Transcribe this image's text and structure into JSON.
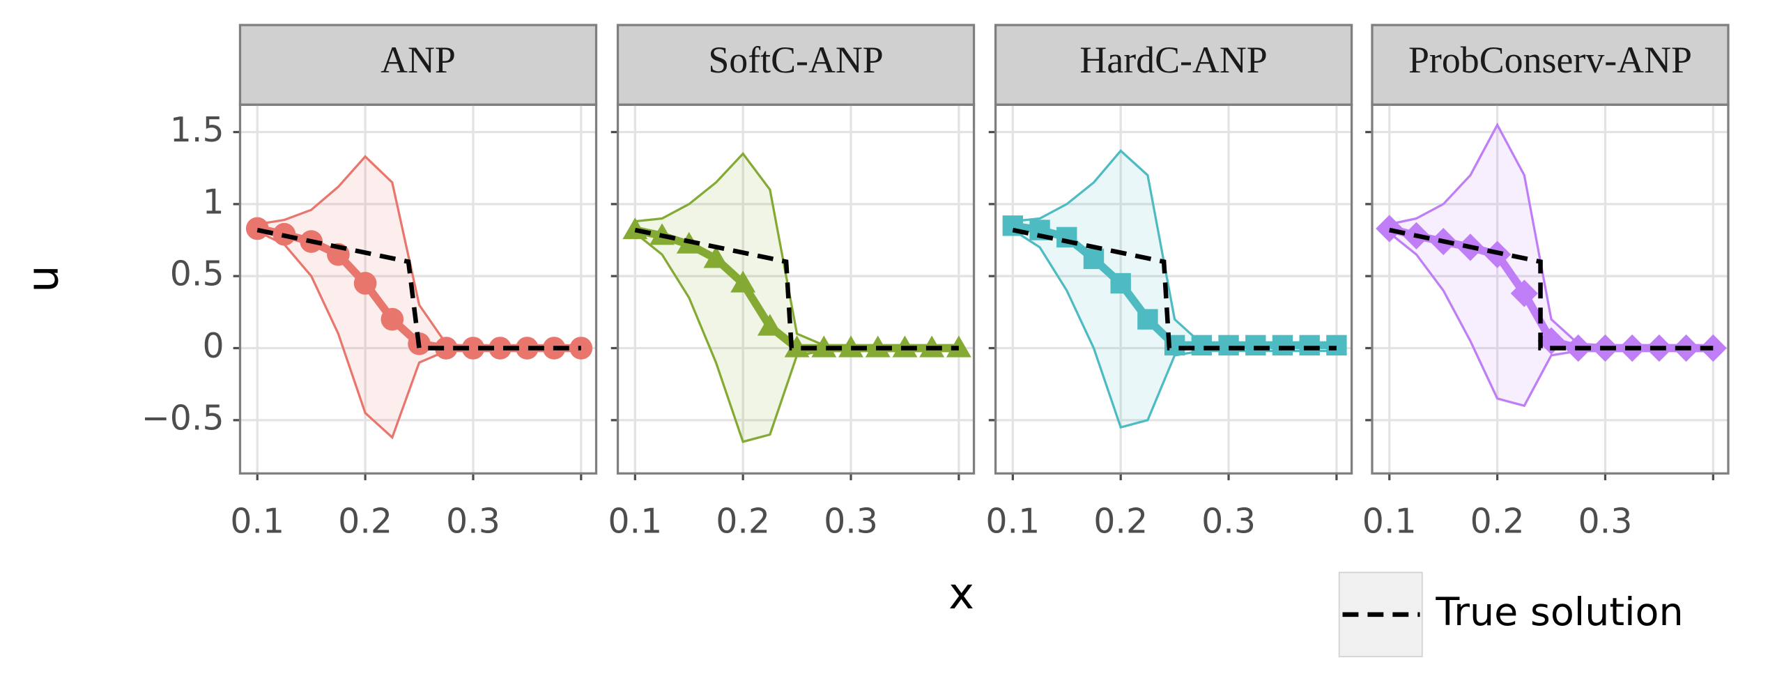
{
  "chart_data": [
    {
      "type": "line",
      "title": "ANP",
      "xlim": [
        0.084,
        0.414
      ],
      "ylim": [
        -0.87,
        1.69
      ],
      "xticks": [
        0.1,
        0.2,
        0.3,
        {
          "value": 0.4,
          "label": null
        }
      ],
      "yticks": [
        {
          "value": -0.5,
          "label": "−0.5"
        },
        0,
        0.5,
        1,
        1.5
      ],
      "x_label": "x",
      "y_label": "u",
      "grid": true,
      "series": [
        {
          "color": "#e8766d",
          "marker": "circle",
          "x": [
            0.1,
            0.125,
            0.15,
            0.175,
            0.2,
            0.225,
            0.25,
            0.275,
            0.3,
            0.325,
            0.35,
            0.375,
            0.4
          ],
          "values": [
            0.83,
            0.79,
            0.74,
            0.65,
            0.45,
            0.2,
            0.03,
            0,
            0,
            0,
            0,
            0,
            0
          ],
          "upper": [
            0.86,
            0.89,
            0.96,
            1.12,
            1.33,
            1.15,
            0.3,
            0.03,
            0.01,
            0.01,
            0.01,
            0.01,
            0.01
          ],
          "lower": [
            0.81,
            0.72,
            0.5,
            0.1,
            -0.45,
            -0.62,
            -0.1,
            -0.02,
            -0.01,
            -0.01,
            -0.01,
            -0.01,
            -0.01
          ]
        },
        {
          "name": "True solution",
          "color": "#000000",
          "x": [
            0.1,
            0.24,
            0.25,
            0.4
          ],
          "values": [
            0.82,
            0.6,
            0,
            0
          ]
        }
      ]
    },
    {
      "type": "line",
      "title": "SoftC-ANP",
      "xlim": [
        0.084,
        0.414
      ],
      "ylim": [
        -0.87,
        1.69
      ],
      "xticks": [
        0.1,
        0.2,
        0.3,
        {
          "value": 0.4,
          "label": null
        }
      ],
      "yticks": [
        {
          "value": -0.5,
          "label": "−0.5"
        },
        0,
        0.5,
        1,
        1.5
      ],
      "grid": true,
      "series": [
        {
          "color": "#84aa34",
          "marker": "triangle",
          "x": [
            0.1,
            0.125,
            0.15,
            0.175,
            0.2,
            0.225,
            0.25,
            0.275,
            0.3,
            0.325,
            0.35,
            0.375,
            0.4
          ],
          "values": [
            0.82,
            0.78,
            0.72,
            0.62,
            0.45,
            0.15,
            0,
            0,
            0,
            0,
            0,
            0,
            0
          ],
          "upper": [
            0.88,
            0.9,
            1.0,
            1.15,
            1.35,
            1.1,
            0.1,
            0.02,
            0.02,
            0.02,
            0.02,
            0.02,
            0.02
          ],
          "lower": [
            0.8,
            0.65,
            0.35,
            -0.1,
            -0.65,
            -0.6,
            -0.05,
            -0.02,
            -0.02,
            -0.02,
            -0.02,
            -0.02,
            -0.02
          ]
        },
        {
          "color": "#000000",
          "x": [
            0.1,
            0.24,
            0.245,
            0.4
          ],
          "values": [
            0.82,
            0.6,
            0,
            0
          ]
        }
      ]
    },
    {
      "type": "line",
      "title": "HardC-ANP",
      "xlim": [
        0.084,
        0.414
      ],
      "ylim": [
        -0.87,
        1.69
      ],
      "xticks": [
        0.1,
        0.2,
        0.3,
        {
          "value": 0.4,
          "label": null
        }
      ],
      "yticks": [
        {
          "value": -0.5,
          "label": "−0.5"
        },
        0,
        0.5,
        1,
        1.5
      ],
      "grid": true,
      "series": [
        {
          "color": "#4ebbc3",
          "marker": "square",
          "x": [
            0.1,
            0.125,
            0.15,
            0.175,
            0.2,
            0.225,
            0.25,
            0.275,
            0.3,
            0.325,
            0.35,
            0.375,
            0.4
          ],
          "values": [
            0.85,
            0.82,
            0.77,
            0.62,
            0.45,
            0.2,
            0.02,
            0.02,
            0.02,
            0.02,
            0.02,
            0.02,
            0.02
          ],
          "upper": [
            0.88,
            0.9,
            1.0,
            1.15,
            1.37,
            1.2,
            0.2,
            0.03,
            0.02,
            0.02,
            0.02,
            0.02,
            0.02
          ],
          "lower": [
            0.82,
            0.7,
            0.4,
            0.0,
            -0.55,
            -0.5,
            -0.05,
            -0.02,
            -0.02,
            -0.02,
            -0.02,
            -0.02,
            -0.02
          ]
        },
        {
          "color": "#000000",
          "x": [
            0.1,
            0.24,
            0.245,
            0.4
          ],
          "values": [
            0.82,
            0.6,
            0,
            0
          ]
        }
      ]
    },
    {
      "type": "line",
      "title": "ProbConserv-ANP",
      "xlim": [
        0.084,
        0.414
      ],
      "ylim": [
        -0.87,
        1.69
      ],
      "xticks": [
        0.1,
        0.2,
        0.3,
        {
          "value": 0.4,
          "label": null
        }
      ],
      "yticks": [
        {
          "value": -0.5,
          "label": "−0.5"
        },
        0,
        0.5,
        1,
        1.5
      ],
      "grid": true,
      "series": [
        {
          "color": "#bf7ef5",
          "marker": "diamond",
          "x": [
            0.1,
            0.125,
            0.15,
            0.175,
            0.2,
            0.225,
            0.25,
            0.275,
            0.3,
            0.325,
            0.35,
            0.375,
            0.4
          ],
          "values": [
            0.83,
            0.78,
            0.74,
            0.7,
            0.65,
            0.38,
            0.05,
            0,
            0,
            0,
            0,
            0,
            0
          ],
          "upper": [
            0.86,
            0.9,
            1.0,
            1.2,
            1.55,
            1.2,
            0.2,
            0.03,
            0.02,
            0.02,
            0.02,
            0.02,
            0.02
          ],
          "lower": [
            0.8,
            0.65,
            0.4,
            0.05,
            -0.35,
            -0.4,
            -0.05,
            -0.02,
            -0.02,
            -0.02,
            -0.02,
            -0.02,
            -0.02
          ]
        },
        {
          "color": "#000000",
          "x": [
            0.1,
            0.24,
            0.24,
            0.4
          ],
          "values": [
            0.82,
            0.6,
            0,
            0
          ]
        }
      ]
    }
  ]
}
